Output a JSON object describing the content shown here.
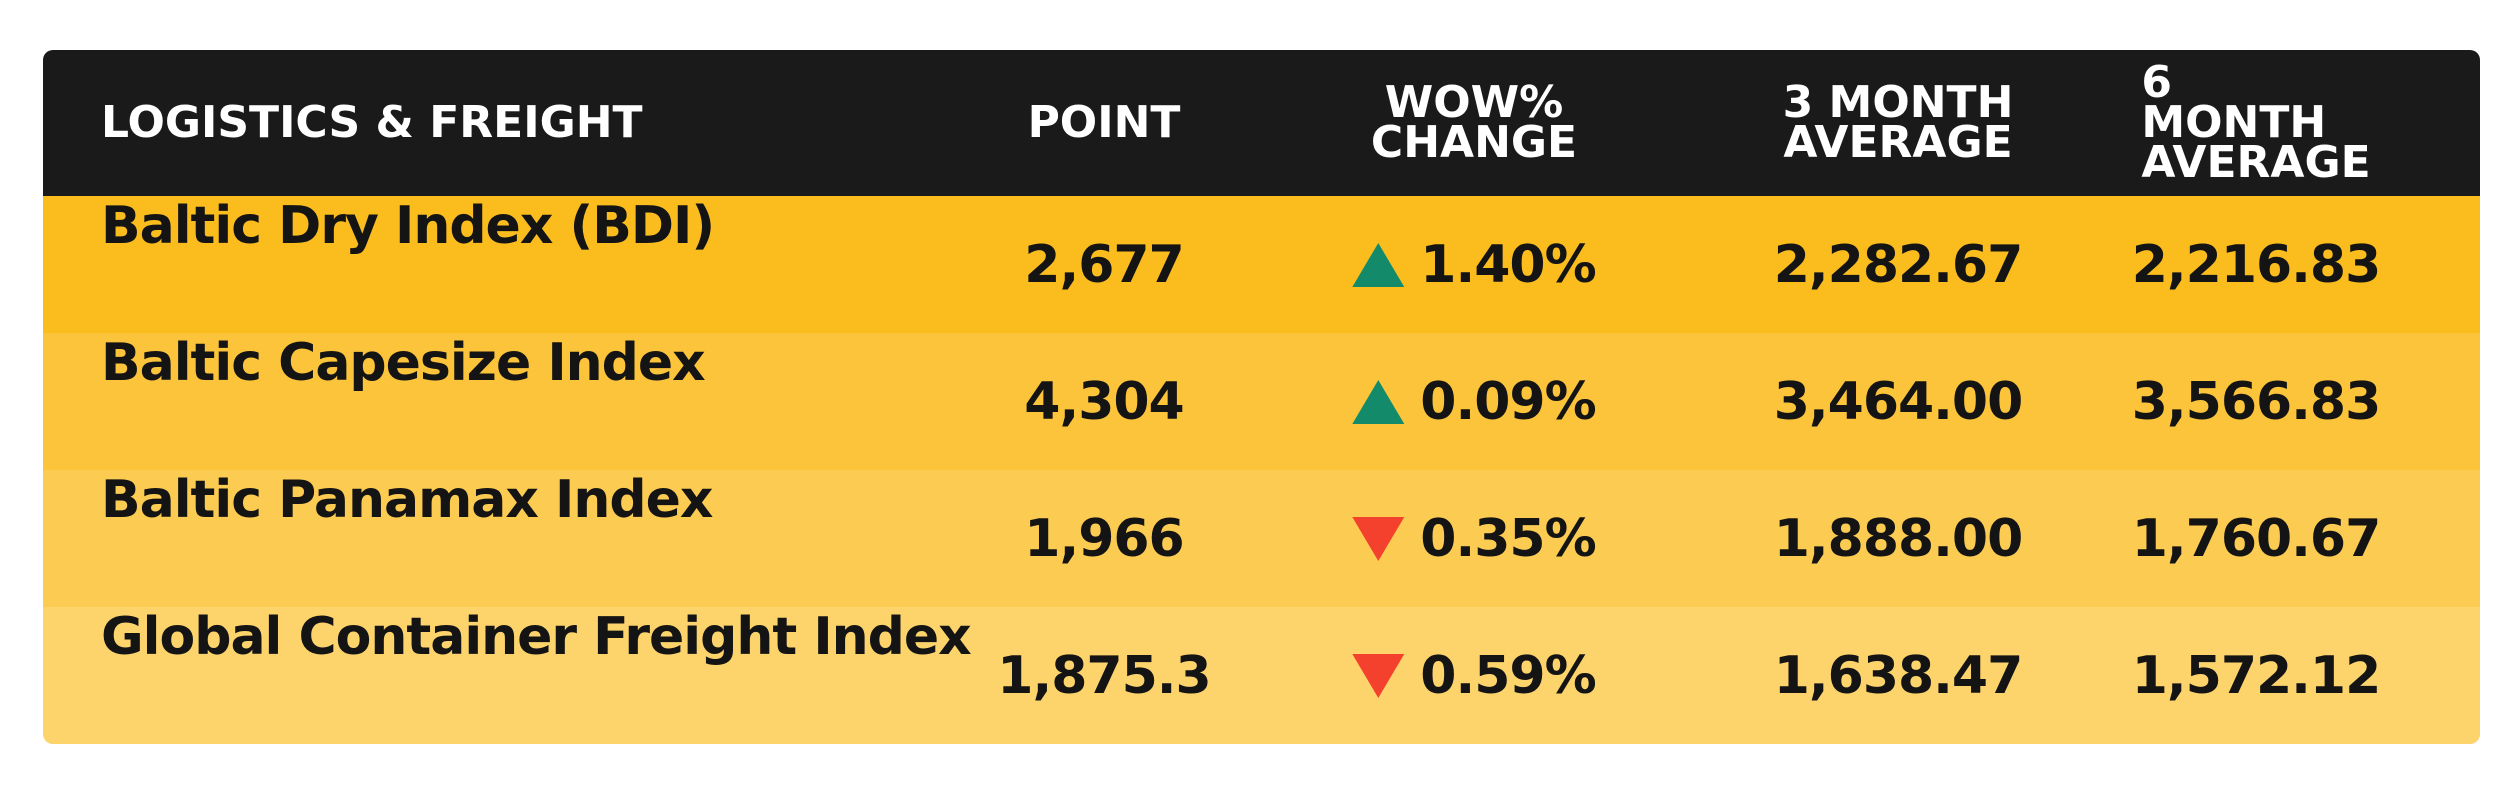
{
  "table": {
    "header": [
      [
        "LOGISTICS & FREIGHT"
      ],
      [
        "POINT"
      ],
      [
        "WOW%",
        "CHANGE"
      ],
      [
        "3 MONTH",
        "AVERAGE"
      ],
      [
        "6 MONTH",
        "AVERAGE"
      ]
    ],
    "rows": [
      {
        "name": "Baltic Dry Index (BDI)",
        "point": "2,677",
        "direction": "up",
        "change": "1.40%",
        "avg3": "2,282.67",
        "avg6": "2,216.83",
        "color": "#fbbd1e"
      },
      {
        "name": "Baltic Capesize Index",
        "point": "4,304",
        "direction": "up",
        "change": "0.09%",
        "avg3": "3,464.00",
        "avg6": "3,566.83",
        "color": "#fcc43a"
      },
      {
        "name": "Baltic Panamax Index",
        "point": "1,966",
        "direction": "down",
        "change": "0.35%",
        "avg3": "1,888.00",
        "avg6": "1,760.67",
        "color": "#fccb51"
      },
      {
        "name": "Global Container Freight Index",
        "point": "1,875.3",
        "direction": "down",
        "change": "0.59%",
        "avg3": "1,638.47",
        "avg6": "1,572.12",
        "color": "#fdd46c"
      }
    ]
  }
}
